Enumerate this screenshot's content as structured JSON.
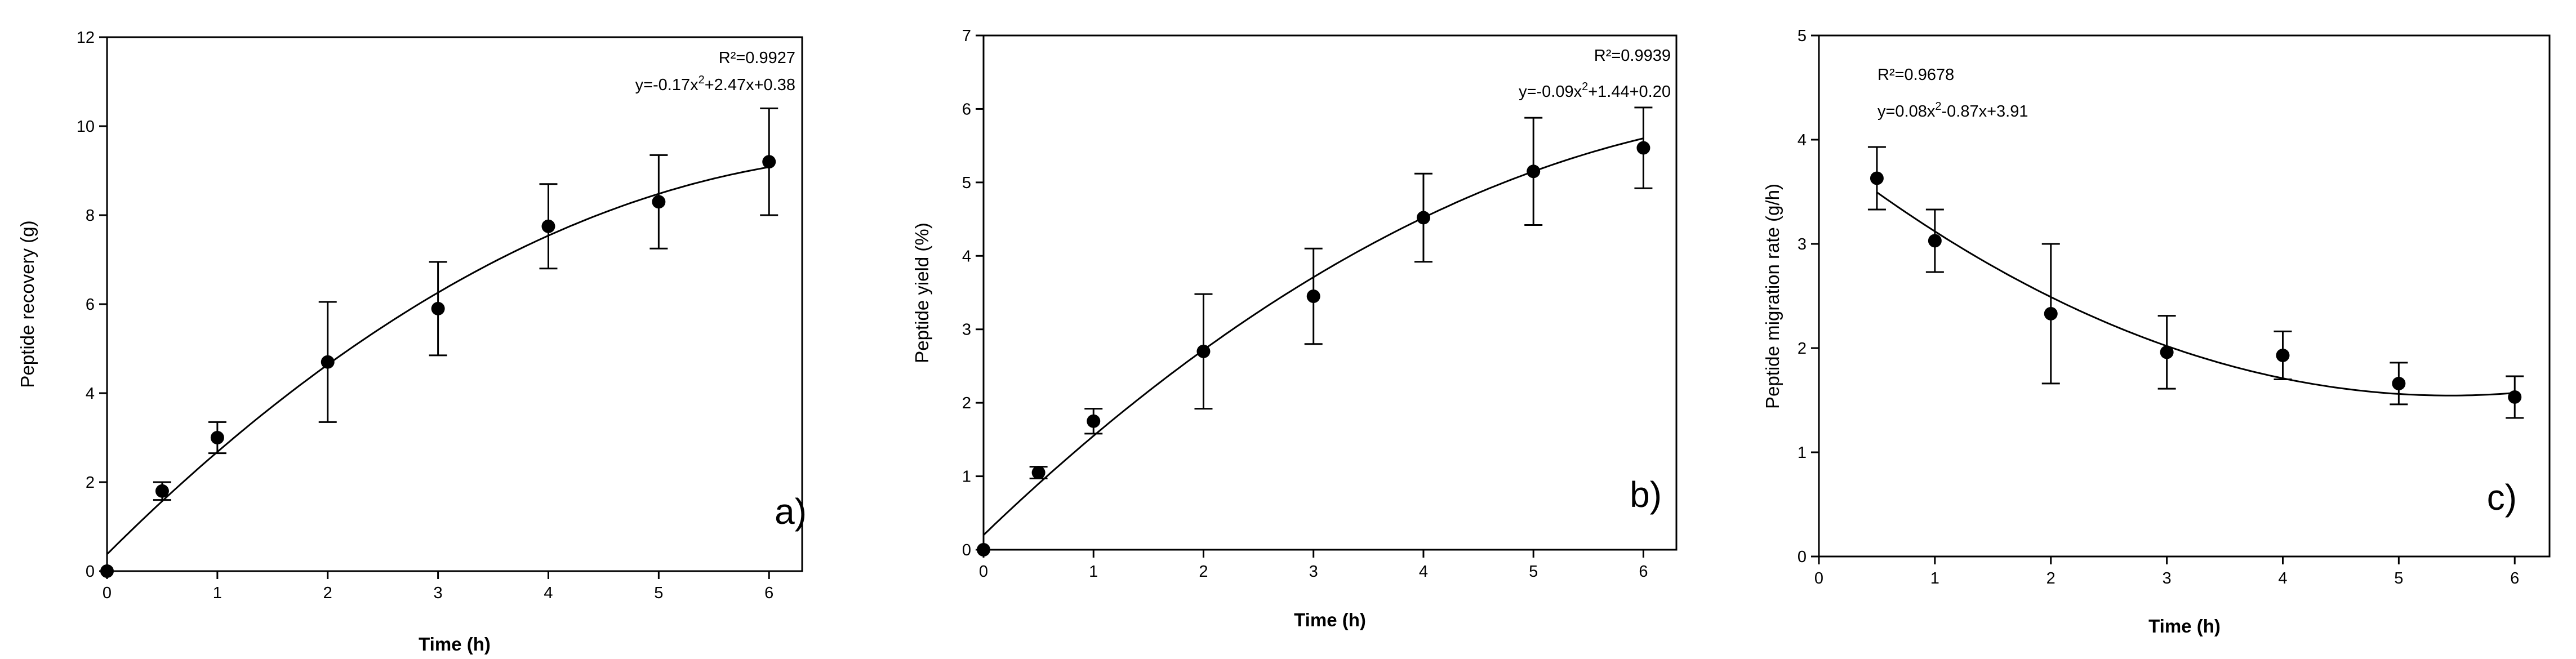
{
  "chart_data": [
    {
      "type": "scatter",
      "panel_label": "a)",
      "xlabel": "Time (h)",
      "ylabel": "Peptide recovery (g)",
      "xlim": [
        0,
        6.3
      ],
      "ylim": [
        0,
        12
      ],
      "xticks": [
        0,
        1,
        2,
        3,
        4,
        5,
        6
      ],
      "yticks": [
        0,
        2,
        4,
        6,
        8,
        10,
        12
      ],
      "x": [
        0,
        0.5,
        1,
        2,
        3,
        4,
        5,
        6
      ],
      "y": [
        0,
        1.8,
        3.0,
        4.7,
        5.9,
        7.75,
        8.3,
        9.2
      ],
      "yerr": [
        0,
        0.2,
        0.35,
        1.35,
        1.05,
        0.95,
        1.05,
        1.2
      ],
      "fit": {
        "a": -0.17,
        "b": 2.47,
        "c": 0.38
      },
      "annotations": {
        "r2": "R²=0.9927",
        "eq_main": "y=-0.17x",
        "eq_sup": "2",
        "eq_rest": "+2.47x+0.38"
      }
    },
    {
      "type": "scatter",
      "panel_label": "b)",
      "xlabel": "Time (h)",
      "ylabel": "Peptide yield (%)",
      "xlim": [
        0,
        6.3
      ],
      "ylim": [
        0,
        7
      ],
      "xticks": [
        0,
        1,
        2,
        3,
        4,
        5,
        6
      ],
      "yticks": [
        0,
        1,
        2,
        3,
        4,
        5,
        6,
        7
      ],
      "x": [
        0,
        0.5,
        1,
        2,
        3,
        4,
        5,
        6
      ],
      "y": [
        0,
        1.05,
        1.75,
        2.7,
        3.45,
        4.52,
        5.15,
        5.47
      ],
      "yerr": [
        0,
        0.08,
        0.17,
        0.78,
        0.65,
        0.6,
        0.73,
        0.55
      ],
      "fit": {
        "a": -0.09,
        "b": 1.44,
        "c": 0.2
      },
      "annotations": {
        "r2": "R²=0.9939",
        "eq_main": "y=-0.09x",
        "eq_sup": "2",
        "eq_rest": "+1.44+0.20"
      }
    },
    {
      "type": "scatter",
      "panel_label": "c)",
      "xlabel": "Time (h)",
      "ylabel": "Peptide migration rate (g/h)",
      "xlim": [
        0,
        6.3
      ],
      "ylim": [
        0,
        5
      ],
      "xticks": [
        0,
        1,
        2,
        3,
        4,
        5,
        6
      ],
      "yticks": [
        0,
        1,
        2,
        3,
        4,
        5
      ],
      "x": [
        0.5,
        1,
        2,
        3,
        4,
        5,
        6
      ],
      "y": [
        3.63,
        3.03,
        2.33,
        1.96,
        1.93,
        1.66,
        1.53
      ],
      "yerr": [
        0.3,
        0.3,
        0.67,
        0.35,
        0.23,
        0.2,
        0.2
      ],
      "fit": {
        "a": 0.08,
        "b": -0.87,
        "c": 3.91
      },
      "annotations": {
        "r2": "R²=0.9678",
        "eq_main": "y=0.08x",
        "eq_sup": "2",
        "eq_rest": "-0.87x+3.91"
      }
    }
  ]
}
